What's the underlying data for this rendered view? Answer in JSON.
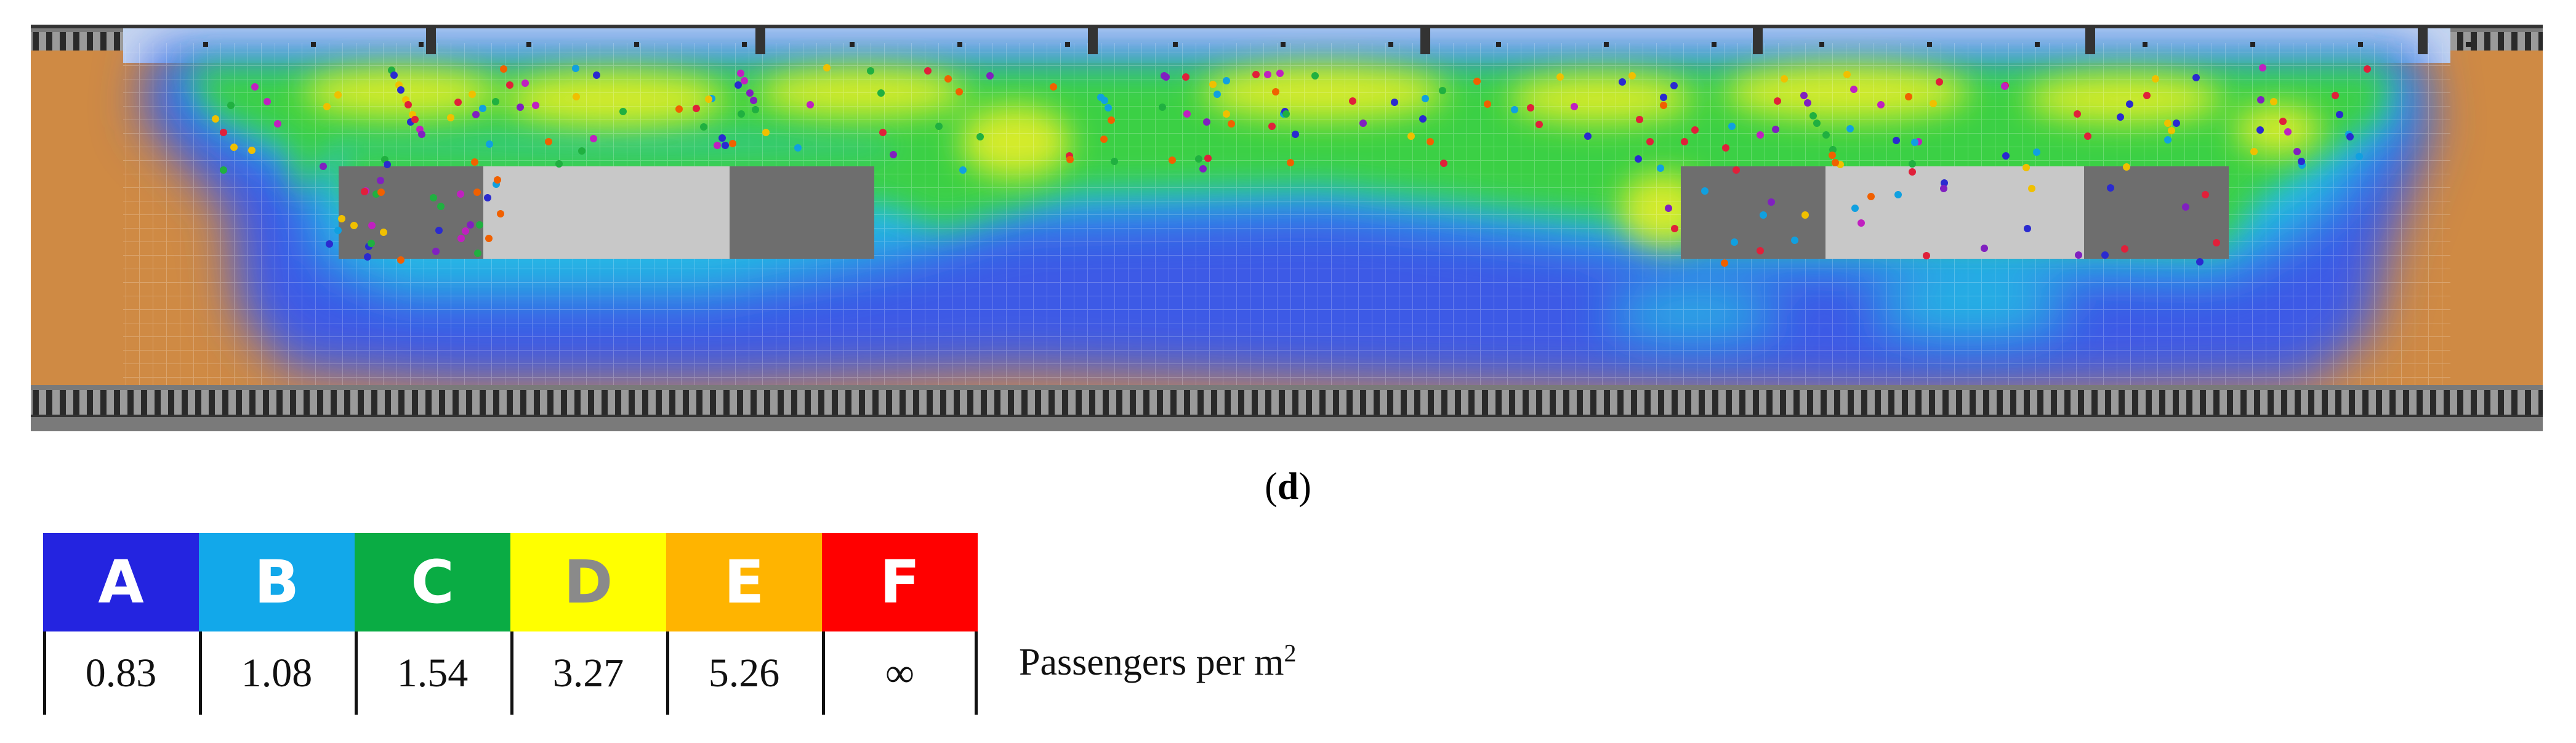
{
  "panel_label": "d",
  "legend": {
    "levels": [
      {
        "grade": "A",
        "value": "0.83",
        "color": "#2424e0",
        "text_color": "#ffffff"
      },
      {
        "grade": "B",
        "value": "1.08",
        "color": "#12a8ea",
        "text_color": "#ffffff"
      },
      {
        "grade": "C",
        "value": "1.54",
        "color": "#0aac44",
        "text_color": "#ffffff"
      },
      {
        "grade": "D",
        "value": "3.27",
        "color": "#ffff00",
        "text_color": "#8a8a8a"
      },
      {
        "grade": "E",
        "value": "5.26",
        "color": "#ffb400",
        "text_color": "#ffffff"
      },
      {
        "grade": "F",
        "value": "∞",
        "color": "#ff0000",
        "text_color": "#ffffff"
      }
    ],
    "unit_text": "Passengers per m",
    "unit_superscript": "2"
  },
  "platform_colors": {
    "floor": "#cf8a44",
    "track_base": "#7a7a7a",
    "rail_ties": "#2a2a2a",
    "obstacle_dark": "#6e6e6e",
    "obstacle_light": "#c8c8c8",
    "edge_zone": "#c8d8f0"
  }
}
